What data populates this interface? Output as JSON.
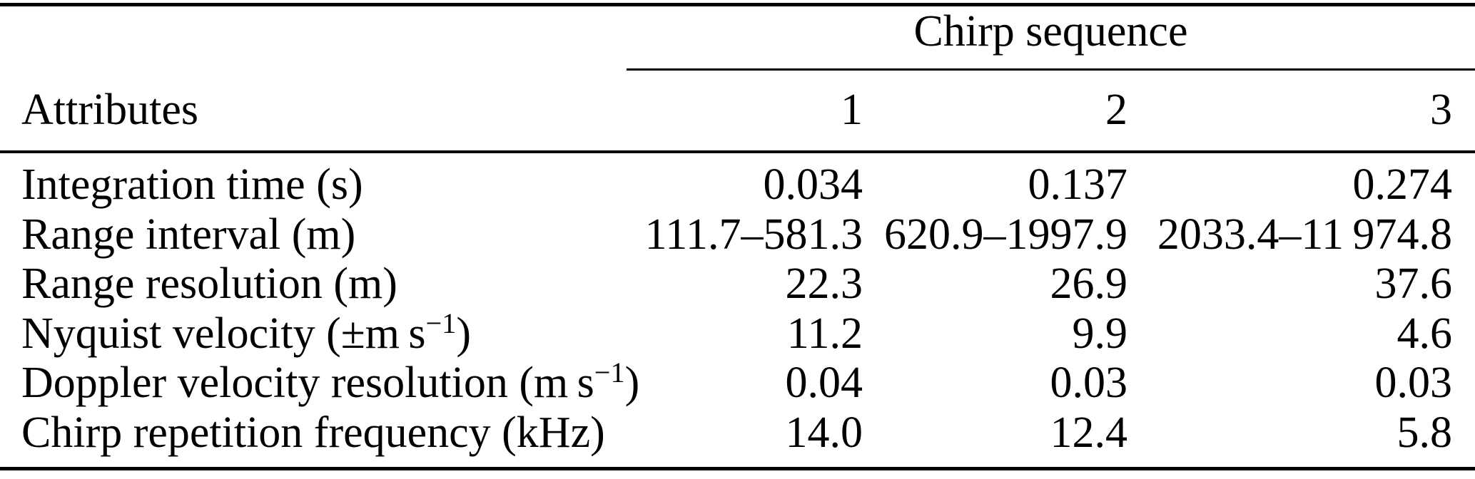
{
  "table": {
    "group_header": "Chirp sequence",
    "corner_header": "Attributes",
    "column_headers": [
      "1",
      "2",
      "3"
    ],
    "rows": [
      {
        "label_pre": "Integration time (s)",
        "label_sup": "",
        "label_post": "",
        "values": [
          "0.034",
          "0.137",
          "0.274"
        ]
      },
      {
        "label_pre": "Range interval (m)",
        "label_sup": "",
        "label_post": "",
        "values": [
          "111.7–581.3",
          "620.9–1997.9",
          "2033.4–11 974.8"
        ]
      },
      {
        "label_pre": "Range resolution (m)",
        "label_sup": "",
        "label_post": "",
        "values": [
          "22.3",
          "26.9",
          "37.6"
        ]
      },
      {
        "label_pre": "Nyquist velocity (±m s",
        "label_sup": "−1",
        "label_post": ")",
        "values": [
          "11.2",
          "9.9",
          "4.6"
        ]
      },
      {
        "label_pre": "Doppler velocity resolution (m s",
        "label_sup": "−1",
        "label_post": ")",
        "values": [
          "0.04",
          "0.03",
          "0.03"
        ]
      },
      {
        "label_pre": "Chirp repetition frequency (kHz)",
        "label_sup": "",
        "label_post": "",
        "values": [
          "14.0",
          "12.4",
          "5.8"
        ]
      }
    ],
    "colors": {
      "text": "#000000",
      "background": "#ffffff",
      "rule": "#000000"
    }
  }
}
